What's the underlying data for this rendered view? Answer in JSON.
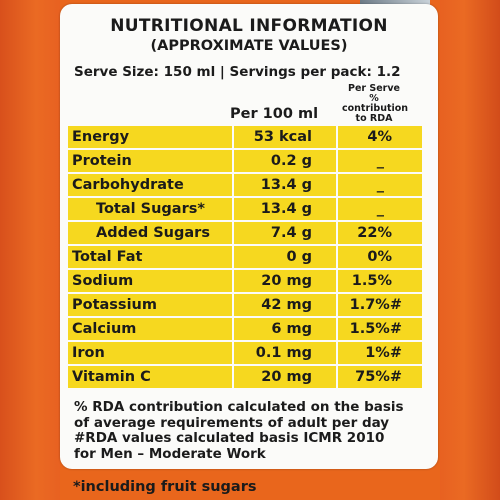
{
  "title": "NUTRITIONAL INFORMATION",
  "subtitle": "(APPROXIMATE VALUES)",
  "serve_line": "Serve Size: 150 ml | Servings per pack: 1.2",
  "headers": {
    "per100": "Per 100 ml",
    "rda": "Per Serve % contribution to RDA"
  },
  "rows": [
    {
      "name": "Energy",
      "per100": "53 kcal",
      "rda": "4%"
    },
    {
      "name": "Protein",
      "per100": "0.2 g",
      "rda": "_"
    },
    {
      "name": "Carbohydrate",
      "per100": "13.4 g",
      "rda": "_"
    },
    {
      "name": "Total Sugars*",
      "per100": "13.4 g",
      "rda": "_"
    },
    {
      "name": "Added Sugars",
      "per100": "7.4 g",
      "rda": "22%"
    },
    {
      "name": "Total Fat",
      "per100": "0 g",
      "rda": "0%"
    },
    {
      "name": "Sodium",
      "per100": "20 mg",
      "rda": "1.5%"
    },
    {
      "name": "Potassium",
      "per100": "42 mg",
      "rda": "1.7%#"
    },
    {
      "name": "Calcium",
      "per100": "6 mg",
      "rda": "1.5%#"
    },
    {
      "name": "Iron",
      "per100": "0.1 mg",
      "rda": "1%#"
    },
    {
      "name": "Vitamin C",
      "per100": "20 mg",
      "rda": "75%#"
    }
  ],
  "notes": [
    "% RDA contribution calculated on the basis",
    "of average requirements of adult per day",
    "#RDA values calculated basis ICMR 2010",
    "for Men – Moderate Work"
  ],
  "footer": "*including fruit sugars",
  "colors": {
    "panel": "#fbfbf9",
    "cell": "#f6d81f",
    "background": "#e9661c"
  }
}
